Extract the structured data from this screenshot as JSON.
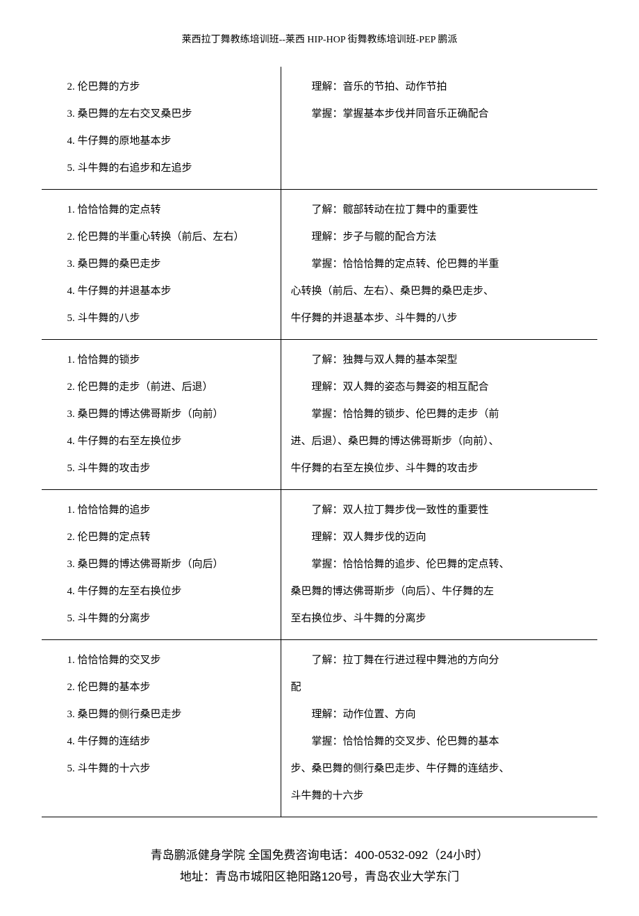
{
  "header": "莱西拉丁舞教练培训班--莱西 HIP-HOP 街舞教练培训班-PEP 鹏派",
  "rows": [
    {
      "left": [
        "2. 伦巴舞的方步",
        "3. 桑巴舞的左右交叉桑巴步",
        "4. 牛仔舞的原地基本步",
        "5. 斗牛舞的右追步和左追步"
      ],
      "right": [
        {
          "indent": true,
          "text": "理解：音乐的节拍、动作节拍"
        },
        {
          "indent": true,
          "text": "掌握：掌握基本步伐并同音乐正确配合"
        }
      ]
    },
    {
      "left": [
        "1. 恰恰恰舞的定点转",
        "2. 伦巴舞的半重心转换（前后、左右）",
        "3. 桑巴舞的桑巴走步",
        "4. 牛仔舞的并退基本步",
        "5. 斗牛舞的八步"
      ],
      "right": [
        {
          "indent": true,
          "text": "了解：髋部转动在拉丁舞中的重要性"
        },
        {
          "indent": true,
          "text": "理解：步子与髋的配合方法"
        },
        {
          "indent": true,
          "text": "掌握：恰恰恰舞的定点转、伦巴舞的半重"
        },
        {
          "indent": false,
          "text": "心转换（前后、左右）、桑巴舞的桑巴走步、"
        },
        {
          "indent": false,
          "text": "牛仔舞的并退基本步、斗牛舞的八步"
        }
      ]
    },
    {
      "left": [
        "1. 恰恰舞的锁步",
        "2. 伦巴舞的走步（前进、后退）",
        "3. 桑巴舞的博达佛哥斯步（向前）",
        "4. 牛仔舞的右至左换位步",
        "5. 斗牛舞的攻击步"
      ],
      "right": [
        {
          "indent": true,
          "text": "了解：独舞与双人舞的基本架型"
        },
        {
          "indent": true,
          "text": "理解：双人舞的姿态与舞姿的相互配合"
        },
        {
          "indent": true,
          "text": "掌握：恰恰舞的锁步、伦巴舞的走步（前"
        },
        {
          "indent": false,
          "text": "进、后退）、桑巴舞的博达佛哥斯步（向前）、"
        },
        {
          "indent": false,
          "text": "牛仔舞的右至左换位步、斗牛舞的攻击步"
        }
      ]
    },
    {
      "left": [
        "1. 恰恰恰舞的追步",
        "2. 伦巴舞的定点转",
        "3. 桑巴舞的博达佛哥斯步（向后）",
        "4. 牛仔舞的左至右换位步",
        "5. 斗牛舞的分离步"
      ],
      "right": [
        {
          "indent": true,
          "text": "了解：双人拉丁舞步伐一致性的重要性"
        },
        {
          "indent": true,
          "text": "理解：双人舞步伐的迈向"
        },
        {
          "indent": true,
          "text": "掌握：恰恰恰舞的追步、伦巴舞的定点转、"
        },
        {
          "indent": false,
          "text": "桑巴舞的博达佛哥斯步（向后）、牛仔舞的左"
        },
        {
          "indent": false,
          "text": "至右换位步、斗牛舞的分离步"
        }
      ]
    },
    {
      "left": [
        "1. 恰恰恰舞的交叉步",
        "2. 伦巴舞的基本步",
        "3. 桑巴舞的侧行桑巴走步",
        "4. 牛仔舞的连结步",
        "5. 斗牛舞的十六步"
      ],
      "right": [
        {
          "indent": true,
          "text": "了解：拉丁舞在行进过程中舞池的方向分"
        },
        {
          "indent": false,
          "text": "配"
        },
        {
          "indent": true,
          "text": "理解：动作位置、方向"
        },
        {
          "indent": true,
          "text": "掌握：恰恰恰舞的交叉步、伦巴舞的基本"
        },
        {
          "indent": false,
          "text": "步、桑巴舞的侧行桑巴走步、牛仔舞的连结步、"
        },
        {
          "indent": false,
          "text": "斗牛舞的十六步"
        }
      ]
    }
  ],
  "footer": {
    "line1": "青岛鹏派健身学院 全国免费咨询电话：400-0532-092（24小时）",
    "line2": "地址：青岛市城阳区艳阳路120号，青岛农业大学东门"
  }
}
